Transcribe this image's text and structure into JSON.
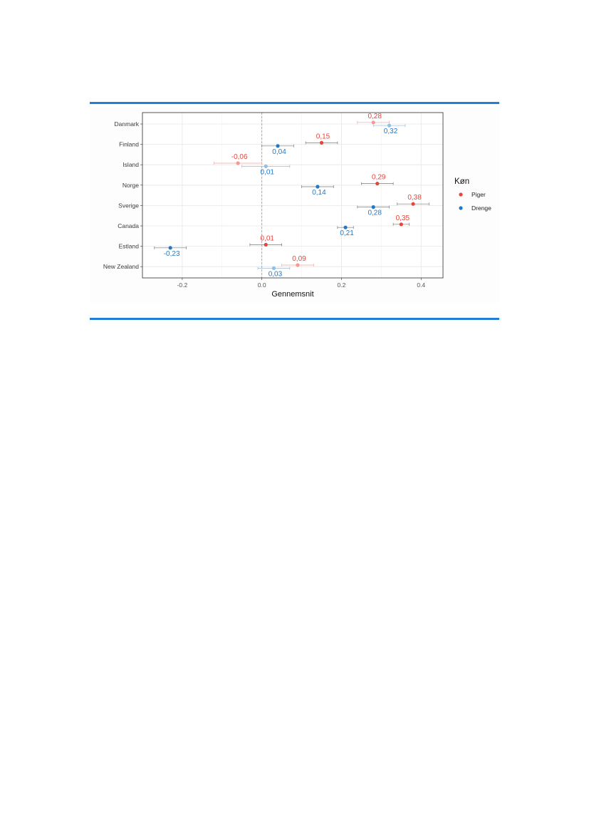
{
  "chart_data": {
    "type": "scatter",
    "xlabel": "Gennemsnit",
    "ylabel": "",
    "xlim": [
      -0.3,
      0.455
    ],
    "x_ticks": [
      -0.2,
      0.0,
      0.2,
      0.4
    ],
    "x_tick_labels": [
      "-0.2",
      "0.0",
      "0.2",
      "0.4"
    ],
    "reference_line_x": 0.0,
    "grid": true,
    "legend_title": "Køn",
    "legend_position": "right",
    "categories": [
      "Danmark",
      "Finland",
      "Island",
      "Norge",
      "Sverige",
      "Canada",
      "Estland",
      "New Zealand"
    ],
    "series": [
      {
        "name": "Piger",
        "color": "#e8453c",
        "values": [
          0.28,
          0.15,
          -0.06,
          0.29,
          0.38,
          0.35,
          0.01,
          0.09
        ],
        "value_labels": [
          "0,28",
          "0,15",
          "-0,06",
          "0,29",
          "0,38",
          "0,35",
          "0,01",
          "0,09"
        ],
        "ci_low": [
          0.24,
          0.11,
          -0.12,
          0.25,
          0.34,
          0.33,
          -0.03,
          0.05
        ],
        "ci_high": [
          0.32,
          0.19,
          0.0,
          0.33,
          0.42,
          0.37,
          0.05,
          0.13
        ],
        "faded": [
          true,
          false,
          true,
          false,
          false,
          false,
          false,
          true
        ]
      },
      {
        "name": "Drenge",
        "color": "#1f78c8",
        "values": [
          0.32,
          0.04,
          0.01,
          0.14,
          0.28,
          0.21,
          -0.23,
          0.03
        ],
        "value_labels": [
          "0,32",
          "0,04",
          "0,01",
          "0,14",
          "0,28",
          "0,21",
          "-0,23",
          "0,03"
        ],
        "ci_low": [
          0.28,
          0.0,
          -0.05,
          0.1,
          0.24,
          0.19,
          -0.27,
          -0.01
        ],
        "ci_high": [
          0.36,
          0.08,
          0.07,
          0.18,
          0.32,
          0.23,
          -0.19,
          0.07
        ],
        "faded": [
          true,
          false,
          true,
          false,
          false,
          false,
          false,
          true
        ]
      }
    ]
  }
}
